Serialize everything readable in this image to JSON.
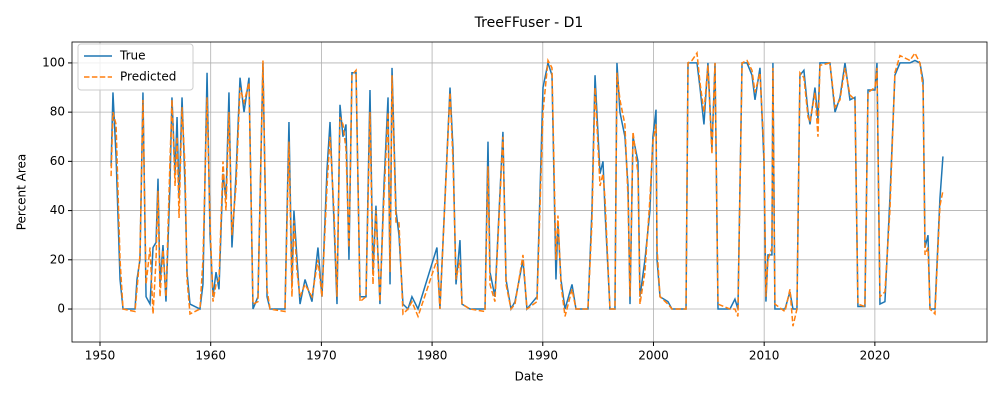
{
  "chart_data": {
    "type": "line",
    "title": "TreeFFuser - D1",
    "x_label": "Date",
    "y_label": "Percent Area",
    "x": [
      1951.0,
      1951.17,
      1951.45,
      1951.81,
      1952.08,
      1953.16,
      1953.34,
      1953.61,
      1953.88,
      1954.16,
      1954.52,
      1954.79,
      1955.06,
      1955.24,
      1955.42,
      1955.69,
      1955.96,
      1956.32,
      1956.5,
      1956.78,
      1956.96,
      1957.14,
      1957.41,
      1957.68,
      1957.86,
      1958.13,
      1959.03,
      1959.3,
      1959.67,
      1959.94,
      1960.21,
      1960.48,
      1960.75,
      1961.11,
      1961.38,
      1961.65,
      1961.92,
      1962.29,
      1962.65,
      1963.01,
      1963.46,
      1963.82,
      1964.27,
      1964.72,
      1965.09,
      1965.36,
      1966.71,
      1967.07,
      1967.34,
      1967.52,
      1967.8,
      1968.07,
      1968.52,
      1969.15,
      1969.69,
      1970.05,
      1970.51,
      1970.78,
      1971.14,
      1971.41,
      1971.68,
      1971.95,
      1972.22,
      1972.49,
      1972.76,
      1973.13,
      1973.49,
      1974.03,
      1974.39,
      1974.66,
      1974.93,
      1975.29,
      1975.65,
      1976.02,
      1976.2,
      1976.38,
      1976.74,
      1977.01,
      1977.37,
      1977.82,
      1978.18,
      1978.73,
      1980.44,
      1980.71,
      1981.62,
      1981.89,
      1982.16,
      1982.52,
      1982.7,
      1983.42,
      1984.78,
      1985.05,
      1985.23,
      1985.68,
      1986.4,
      1986.68,
      1987.13,
      1987.49,
      1988.21,
      1988.57,
      1989.48,
      1990.02,
      1990.47,
      1990.83,
      1991.19,
      1991.37,
      1991.64,
      1992.01,
      1992.64,
      1993.0,
      1994.08,
      1994.44,
      1994.72,
      1995.17,
      1995.44,
      1995.62,
      1996.07,
      1996.52,
      1996.7,
      1996.97,
      1997.42,
      1997.7,
      1997.88,
      1998.15,
      1998.6,
      1998.78,
      1999.23,
      1999.68,
      1999.95,
      2000.23,
      2000.32,
      2000.59,
      2001.31,
      2001.67,
      2002.94,
      2003.12,
      2003.48,
      2003.93,
      2004.2,
      2004.56,
      2004.92,
      2005.28,
      2005.56,
      2005.83,
      2006.91,
      2007.36,
      2007.63,
      2008.0,
      2008.45,
      2008.9,
      2009.17,
      2009.62,
      2009.98,
      2010.16,
      2010.34,
      2010.7,
      2010.79,
      2010.97,
      2011.88,
      2012.33,
      2012.6,
      2012.96,
      2013.23,
      2013.59,
      2013.96,
      2014.14,
      2014.59,
      2014.86,
      2015.04,
      2015.94,
      2016.4,
      2016.85,
      2017.3,
      2017.75,
      2018.2,
      2018.47,
      2019.1,
      2019.38,
      2020.01,
      2020.19,
      2020.46,
      2020.91,
      2021.36,
      2021.81,
      2022.27,
      2023.17,
      2023.62,
      2024.07,
      2024.35,
      2024.53,
      2024.8,
      2024.98,
      2025.43,
      2025.88,
      2026.15
    ],
    "series": [
      {
        "name": "True",
        "color": "#1f77b4",
        "linestyle": "solid",
        "values": [
          58,
          88,
          62,
          12,
          0,
          0,
          12,
          20,
          88,
          5,
          2,
          25,
          27,
          53,
          10,
          26,
          3,
          50,
          86,
          55,
          78,
          45,
          86,
          50,
          15,
          2,
          0,
          10,
          96,
          30,
          5,
          15,
          8,
          55,
          45,
          88,
          25,
          55,
          94,
          80,
          94,
          0,
          5,
          100,
          5,
          0,
          0,
          76,
          10,
          40,
          20,
          2,
          12,
          3,
          25,
          5,
          57,
          76,
          35,
          2,
          83,
          70,
          75,
          20,
          96,
          96,
          5,
          5,
          89,
          15,
          42,
          2,
          50,
          86,
          10,
          98,
          40,
          30,
          2,
          0,
          5,
          0,
          25,
          0,
          90,
          65,
          10,
          28,
          2,
          0,
          0,
          68,
          15,
          5,
          72,
          12,
          0,
          3,
          20,
          0,
          5,
          90,
          100,
          95,
          12,
          35,
          12,
          0,
          10,
          0,
          0,
          40,
          95,
          55,
          60,
          40,
          0,
          0,
          100,
          80,
          70,
          50,
          2,
          70,
          60,
          5,
          20,
          40,
          70,
          81,
          20,
          5,
          3,
          0,
          0,
          100,
          100,
          100,
          90,
          75,
          100,
          65,
          100,
          0,
          0,
          4,
          0,
          100,
          100,
          95,
          85,
          98,
          60,
          3,
          22,
          22,
          100,
          0,
          0,
          7,
          0,
          0,
          95,
          97,
          80,
          75,
          90,
          77,
          100,
          100,
          80,
          86,
          100,
          85,
          86,
          1,
          1,
          89,
          89,
          100,
          2,
          3,
          45,
          95,
          100,
          100,
          101,
          100,
          93,
          25,
          30,
          0,
          0,
          45,
          62
        ]
      },
      {
        "name": "Predicted",
        "color": "#ff7f0e",
        "linestyle": "dashed",
        "values": [
          54,
          80,
          75,
          20,
          0,
          -1,
          8,
          22,
          85,
          10,
          25,
          -2,
          20,
          48,
          5,
          24,
          5,
          60,
          85,
          50,
          70,
          37,
          82,
          58,
          12,
          -2,
          0,
          20,
          86,
          35,
          3,
          10,
          12,
          60,
          40,
          80,
          30,
          50,
          90,
          84,
          92,
          2,
          3,
          101,
          8,
          0,
          -1,
          68,
          5,
          36,
          15,
          5,
          10,
          5,
          20,
          5,
          50,
          70,
          40,
          5,
          78,
          75,
          65,
          25,
          95,
          97,
          3,
          5,
          80,
          10,
          40,
          3,
          45,
          80,
          15,
          95,
          35,
          35,
          -2,
          0,
          3,
          -3,
          20,
          0,
          88,
          60,
          12,
          20,
          2,
          0,
          -1,
          58,
          10,
          3,
          70,
          10,
          0,
          2,
          22,
          0,
          3,
          80,
          101,
          98,
          20,
          38,
          10,
          -3,
          8,
          0,
          0,
          35,
          90,
          50,
          55,
          45,
          0,
          0,
          96,
          85,
          75,
          45,
          5,
          72,
          55,
          2,
          15,
          45,
          68,
          75,
          25,
          5,
          2,
          0,
          0,
          100,
          101,
          104,
          92,
          80,
          99,
          63,
          100,
          2,
          0,
          0,
          -3,
          100,
          101,
          97,
          88,
          96,
          65,
          5,
          20,
          25,
          98,
          2,
          -1,
          8,
          -7,
          0,
          96,
          94,
          78,
          76,
          88,
          70,
          99,
          100,
          82,
          85,
          98,
          87,
          85,
          2,
          1,
          88,
          90,
          98,
          5,
          7,
          40,
          96,
          103,
          101,
          104,
          100,
          90,
          22,
          25,
          0,
          -2,
          42,
          48
        ]
      }
    ],
    "xlim": [
      1947.47,
      2030.13
    ],
    "ylim": [
      -13.4,
      108.5
    ],
    "xticks": [
      1950,
      1960,
      1970,
      1980,
      1990,
      2000,
      2010,
      2020
    ],
    "yticks": [
      0,
      20,
      40,
      60,
      80,
      100
    ],
    "grid": true,
    "legend": "upper-left"
  }
}
